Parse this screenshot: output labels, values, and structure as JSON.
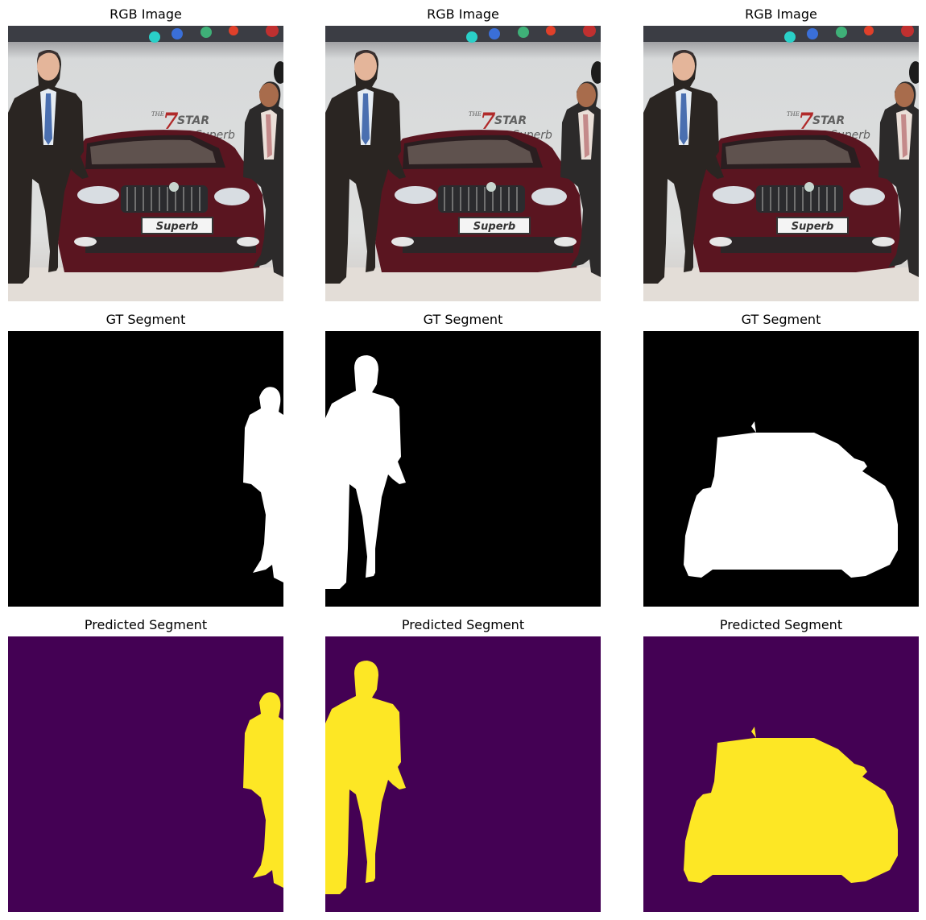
{
  "figure": {
    "rows": [
      {
        "title": "RGB Image"
      },
      {
        "title": "GT Segment"
      },
      {
        "title": "Predicted Segment"
      }
    ]
  },
  "photo": {
    "banner_brand_top": "THE",
    "banner_brand_number": "7",
    "banner_brand_word": "STAR",
    "banner_model": "Superb",
    "plate_text": "Superb"
  },
  "colors": {
    "mask_background": "#000000",
    "mask_foreground": "#ffffff",
    "pred_background": "#440154",
    "pred_foreground": "#fde725",
    "car_body": "#5a1520",
    "suit": "#2a2522"
  }
}
